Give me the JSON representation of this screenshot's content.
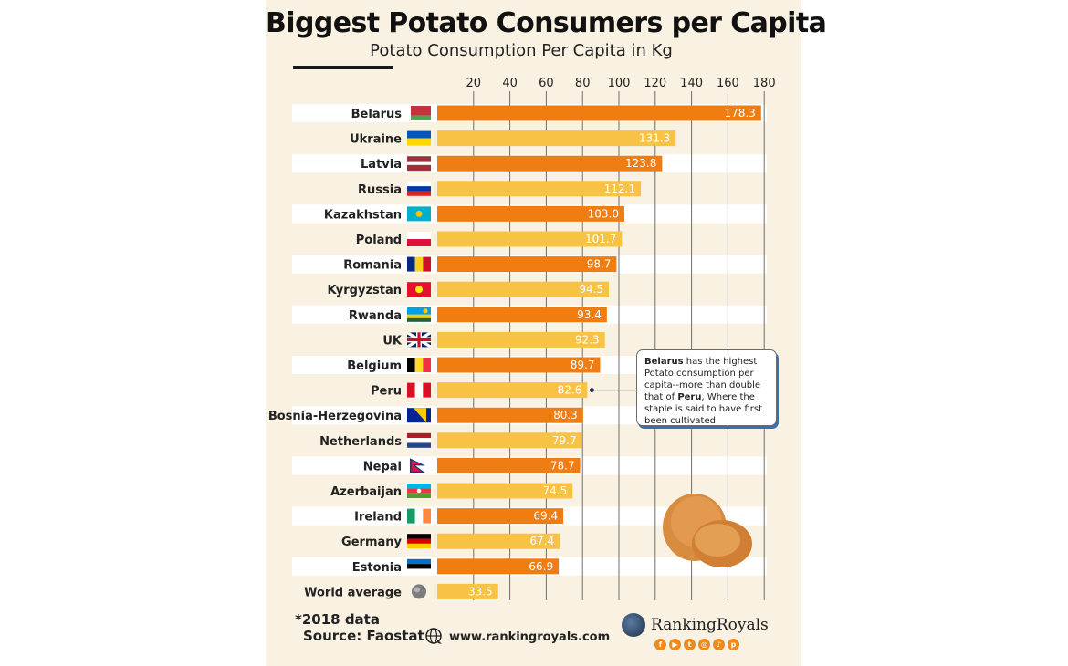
{
  "title": "Biggest Potato Consumers per Capita",
  "subtitle": "Potato Consumption Per Capita in Kg",
  "chart_data": {
    "type": "bar",
    "orientation": "horizontal",
    "title": "Biggest Potato Consumers per Capita",
    "subtitle": "Potato Consumption Per Capita in Kg",
    "xlim": [
      0,
      180
    ],
    "x_ticks": [
      20,
      40,
      60,
      80,
      100,
      120,
      140,
      160,
      180
    ],
    "grid": "vertical",
    "categories": [
      "Belarus",
      "Ukraine",
      "Latvia",
      "Russia",
      "Kazakhstan",
      "Poland",
      "Romania",
      "Kyrgyzstan",
      "Rwanda",
      "UK",
      "Belgium",
      "Peru",
      "Bosnia-Herzegovina",
      "Netherlands",
      "Nepal",
      "Azerbaijan",
      "Ireland",
      "Germany",
      "Estonia",
      "World average"
    ],
    "values": [
      178.3,
      131.3,
      123.8,
      112.1,
      103.0,
      101.7,
      98.7,
      94.5,
      93.4,
      92.3,
      89.7,
      82.6,
      80.3,
      79.7,
      78.7,
      74.5,
      69.4,
      67.4,
      66.9,
      33.5
    ],
    "value_labels": [
      "178.3",
      "131.3",
      "123.8",
      "112.1",
      "103.0",
      "101.7",
      "98.7",
      "94.5",
      "93.4",
      "92.3",
      "89.7",
      "82.6",
      "80.3",
      "79.7",
      "78.7",
      "74.5",
      "69.4",
      "67.4",
      "66.9",
      "33.5"
    ],
    "flags": [
      "flag-belarus",
      "flag-ukraine",
      "flag-latvia",
      "flag-russia",
      "flag-kazakhstan",
      "flag-poland",
      "flag-romania",
      "flag-kyrgyzstan",
      "flag-rwanda",
      "flag-uk",
      "flag-belgium",
      "flag-peru",
      "flag-bosnia-herzegovina",
      "flag-netherlands",
      "flag-nepal",
      "flag-azerbaijan",
      "flag-ireland",
      "flag-germany",
      "flag-estonia",
      "globe-icon"
    ],
    "colors": {
      "bar_dark": "#f07d12",
      "bar_light": "#f8c244",
      "row_band": "#ffffff",
      "background": "#f9f2e2"
    }
  },
  "callout": {
    "pre": "Belarus",
    "mid1": " has the highest Potato consumption per capita--more than double that of ",
    "bold2": "Peru",
    "post": ", Where the  staple is said to have first been cultivated"
  },
  "footnote": {
    "line1": "*2018 data",
    "line2": "Source: Faostat"
  },
  "website": "www.rankingroyals.com",
  "brand": "RankingRoyals",
  "socials": [
    "facebook-icon",
    "youtube-icon",
    "twitter-icon",
    "instagram-icon",
    "tiktok-icon",
    "pinterest-icon"
  ]
}
